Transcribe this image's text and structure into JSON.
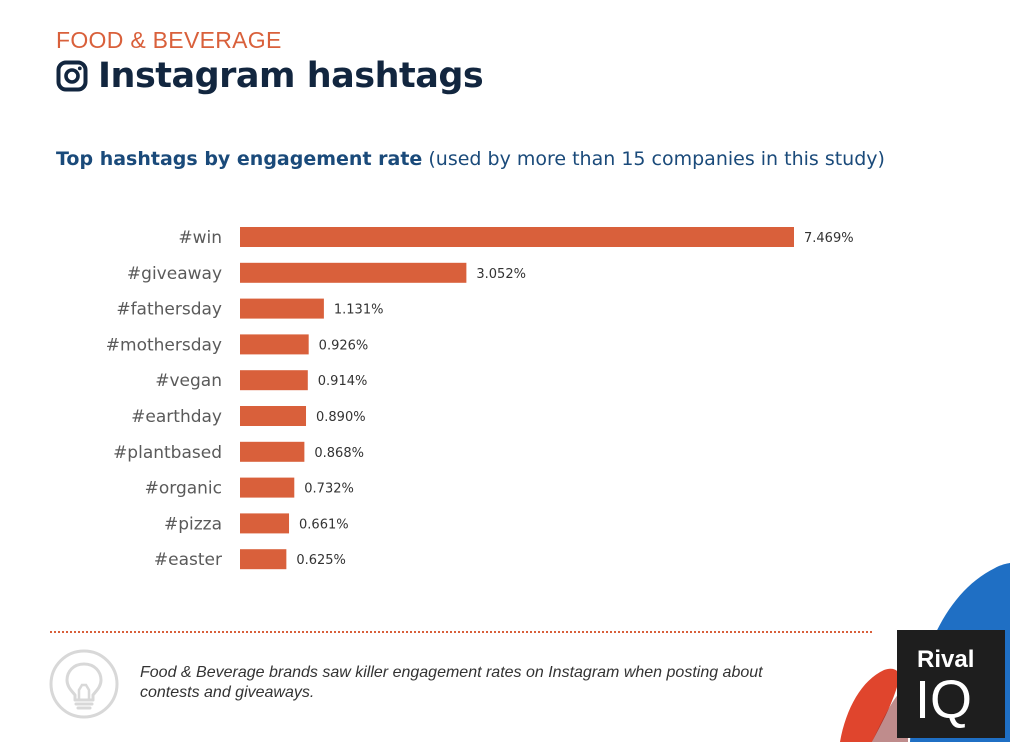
{
  "header": {
    "category": "FOOD & BEVERAGE",
    "title": "Instagram hashtags",
    "icon": "instagram-icon"
  },
  "subtitle": {
    "strong": "Top hashtags by engagement rate",
    "light": "(used by more than 15 companies in this study)"
  },
  "chart_data": {
    "type": "bar",
    "orientation": "horizontal",
    "title": "Top hashtags by engagement rate",
    "subtitle": "(used by more than 15 companies in this study)",
    "categories": [
      "#win",
      "#giveaway",
      "#fathersday",
      "#mothersday",
      "#vegan",
      "#earthday",
      "#plantbased",
      "#organic",
      "#pizza",
      "#easter"
    ],
    "values": [
      7.469,
      3.052,
      1.131,
      0.926,
      0.914,
      0.89,
      0.868,
      0.732,
      0.661,
      0.625
    ],
    "data_labels": [
      "7.469%",
      "3.052%",
      "1.131%",
      "0.926%",
      "0.914%",
      "0.890%",
      "0.868%",
      "0.732%",
      "0.661%",
      "0.625%"
    ],
    "unit": "%",
    "bar_color": "#d9603b",
    "grid": false,
    "legend": false
  },
  "footer": {
    "note": "Food & Beverage brands saw killer engagement rates on Instagram when posting about contests and giveaways.",
    "icon": "lightbulb-icon"
  },
  "logo": {
    "line1": "Rival",
    "line2": "IQ"
  },
  "colors": {
    "accent": "#d9603b",
    "title": "#12263f",
    "subtitle": "#1a4a7a",
    "deco_blue": "#1f6fc4",
    "deco_red": "#e0452d"
  }
}
